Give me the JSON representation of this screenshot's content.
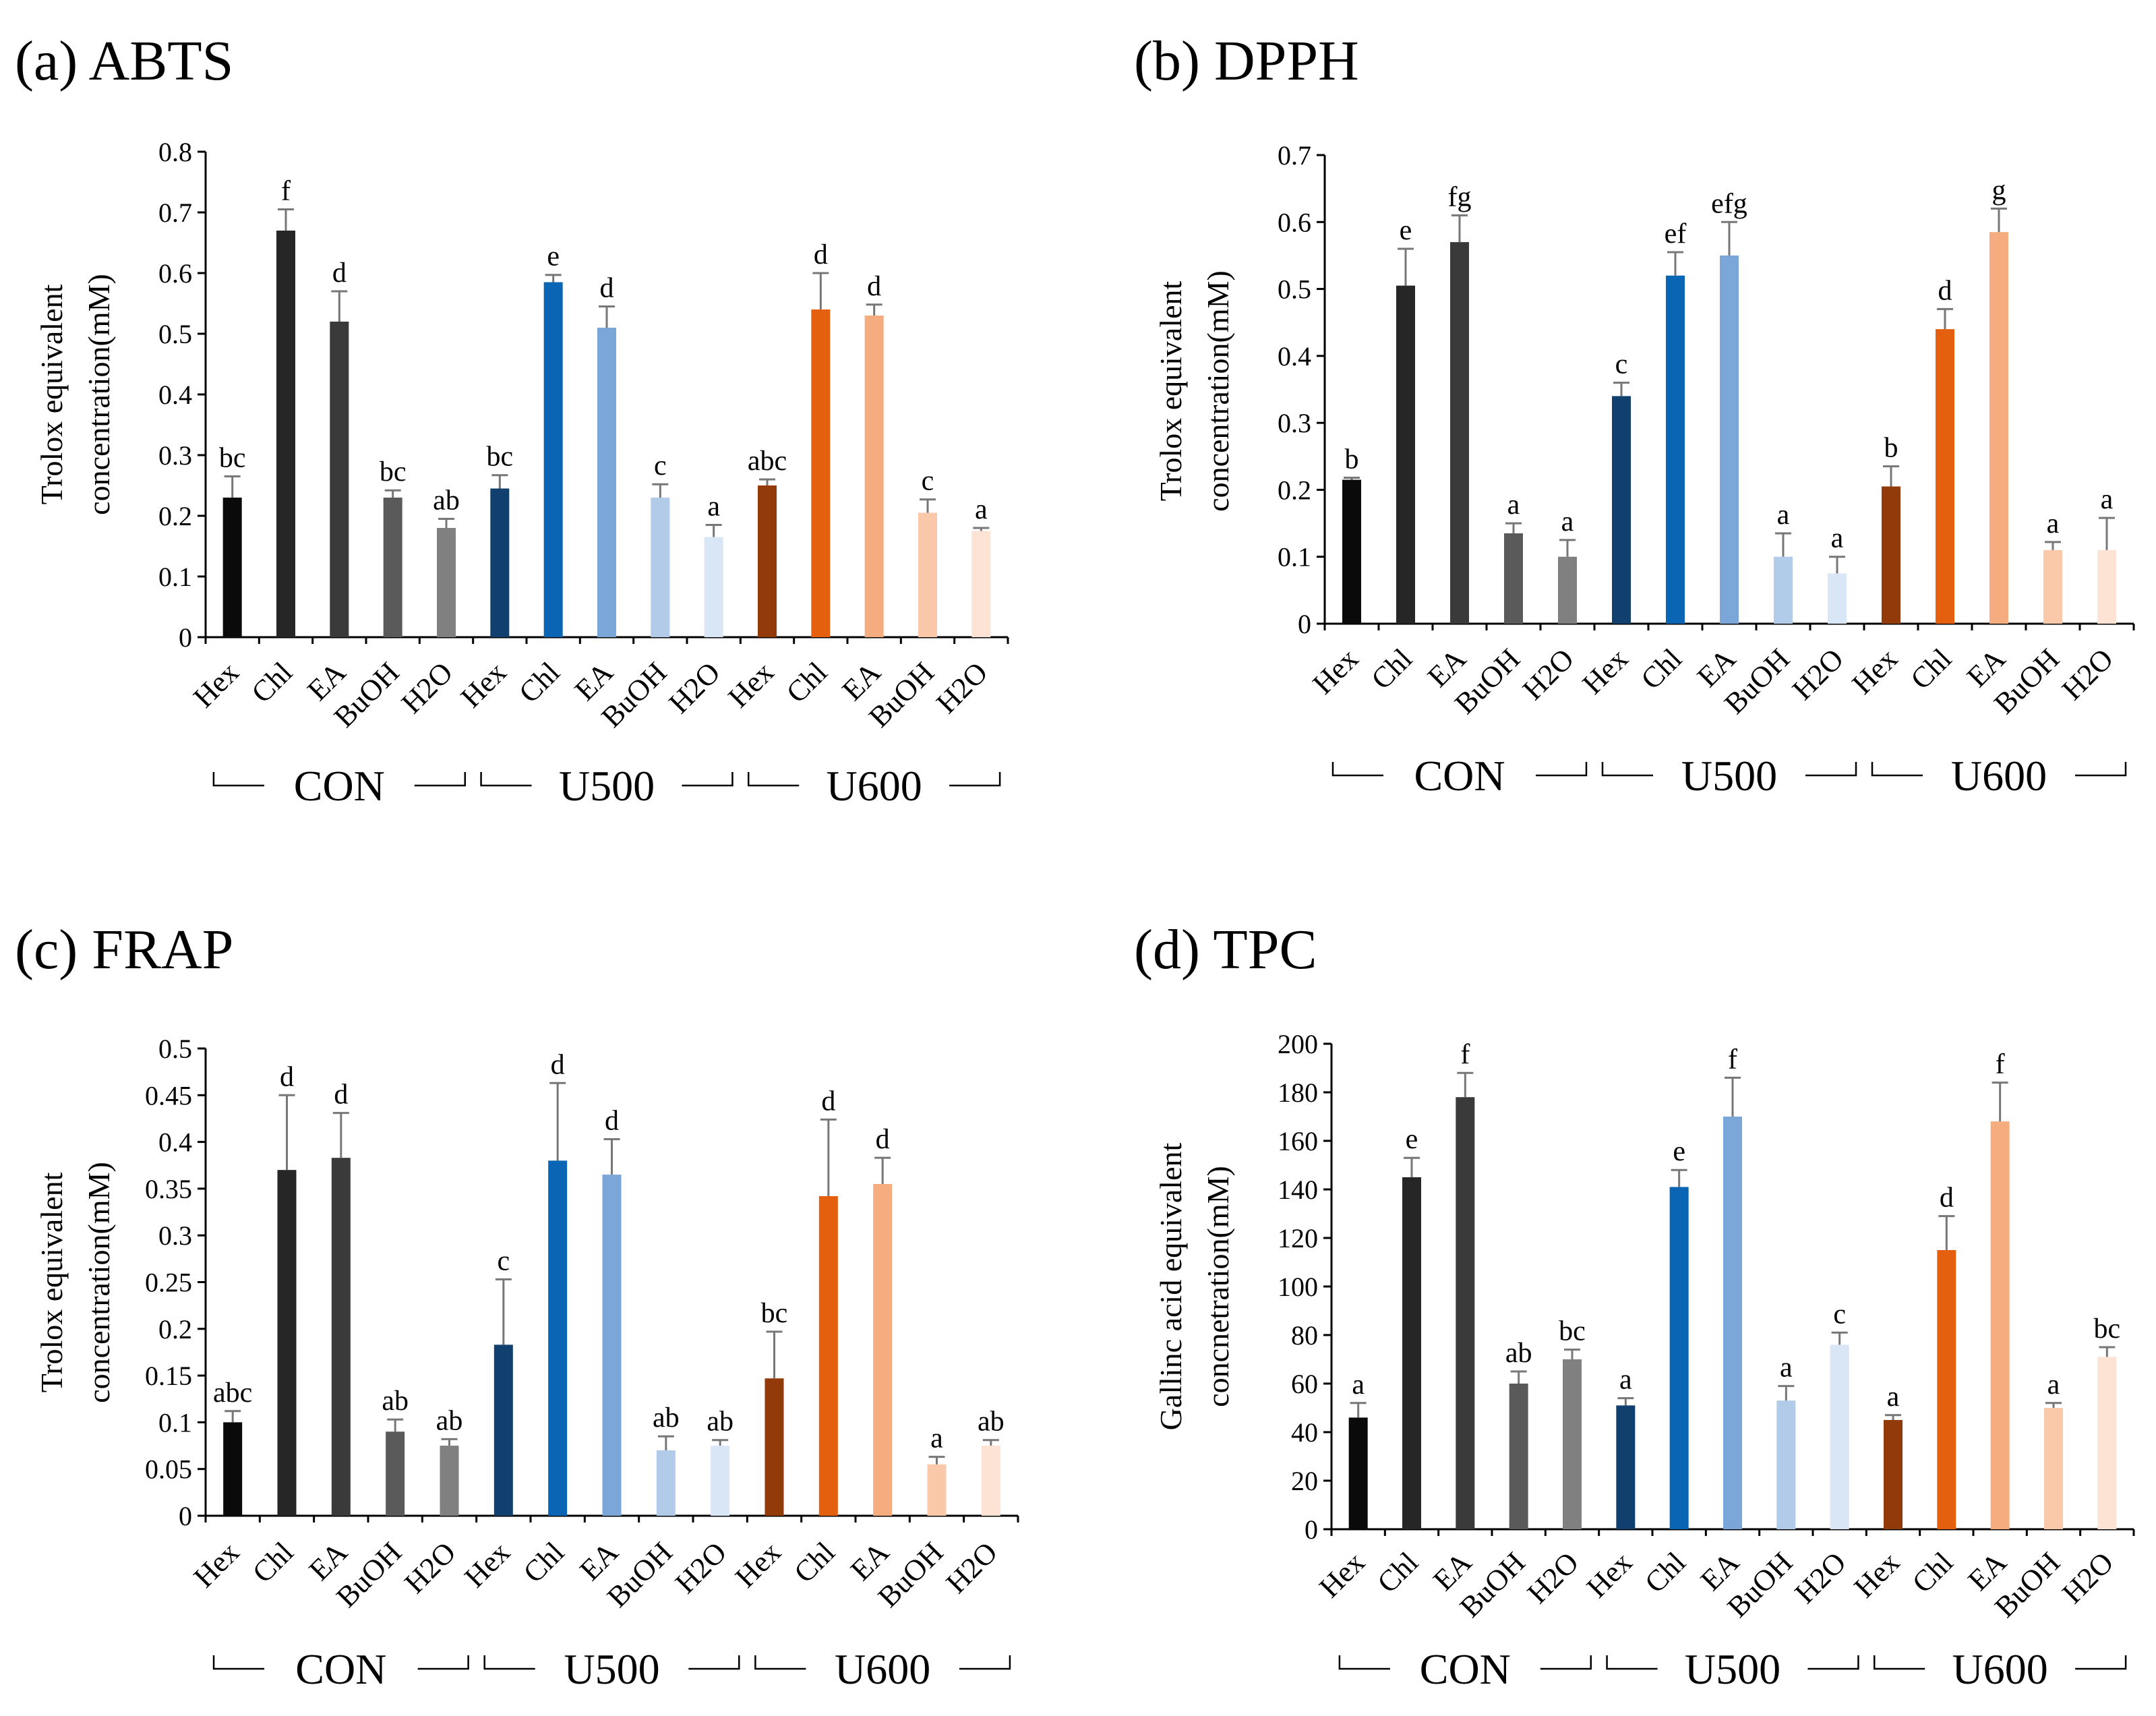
{
  "colors": {
    "CON": [
      "#0a0a0a",
      "#262626",
      "#3a3a3a",
      "#5a5a5a",
      "#808080"
    ],
    "U500": [
      "#12406e",
      "#0a66b4",
      "#7ba6d8",
      "#b2cbe9",
      "#d8e6f5"
    ],
    "U600": [
      "#923a0a",
      "#e5600e",
      "#f5ac7e",
      "#f9c9aa",
      "#fde3d3"
    ]
  },
  "chart_data": [
    {
      "type": "bar",
      "panel": "a",
      "title": "(a) ABTS",
      "ylabel": [
        "Trolox  equivalent",
        "concentration(mM)"
      ],
      "ylim": [
        0,
        0.8
      ],
      "yticks": [
        "0",
        "0.1",
        "0.2",
        "0.3",
        "0.4",
        "0.5",
        "0.6",
        "0.7",
        "0.8"
      ],
      "categories": [
        "Hex",
        "Chl",
        "EA",
        "BuOH",
        "H2O",
        "Hex",
        "Chl",
        "EA",
        "BuOH",
        "H2O",
        "Hex",
        "Chl",
        "EA",
        "BuOH",
        "H2O"
      ],
      "groups": [
        "CON",
        "U500",
        "U600"
      ],
      "values": [
        0.23,
        0.67,
        0.52,
        0.23,
        0.18,
        0.245,
        0.585,
        0.51,
        0.23,
        0.165,
        0.25,
        0.54,
        0.53,
        0.205,
        0.175
      ],
      "errors": [
        0.035,
        0.035,
        0.05,
        0.012,
        0.015,
        0.022,
        0.012,
        0.035,
        0.022,
        0.02,
        0.01,
        0.06,
        0.018,
        0.022,
        0.005
      ],
      "letters": [
        "bc",
        "f",
        "d",
        "bc",
        "ab",
        "bc",
        "e",
        "d",
        "c",
        "a",
        "abc",
        "d",
        "d",
        "c",
        "a"
      ]
    },
    {
      "type": "bar",
      "panel": "b",
      "title": "(b) DPPH",
      "ylabel": [
        "Trolox  equivalent",
        "concentration(mM)"
      ],
      "ylim": [
        0,
        0.7
      ],
      "yticks": [
        "0",
        "0.1",
        "0.2",
        "0.3",
        "0.4",
        "0.5",
        "0.6",
        "0.7"
      ],
      "categories": [
        "Hex",
        "Chl",
        "EA",
        "BuOH",
        "H2O",
        "Hex",
        "Chl",
        "EA",
        "BuOH",
        "H2O",
        "Hex",
        "Chl",
        "EA",
        "BuOH",
        "H2O"
      ],
      "groups": [
        "CON",
        "U500",
        "U600"
      ],
      "values": [
        0.215,
        0.505,
        0.57,
        0.135,
        0.1,
        0.34,
        0.52,
        0.55,
        0.1,
        0.075,
        0.205,
        0.44,
        0.585,
        0.11,
        0.11
      ],
      "errors": [
        0.003,
        0.055,
        0.04,
        0.015,
        0.025,
        0.02,
        0.035,
        0.05,
        0.035,
        0.025,
        0.03,
        0.03,
        0.035,
        0.012,
        0.048
      ],
      "letters": [
        "b",
        "e",
        "fg",
        "a",
        "a",
        "c",
        "ef",
        "efg",
        "a",
        "a",
        "b",
        "d",
        "g",
        "a",
        "a"
      ]
    },
    {
      "type": "bar",
      "panel": "c",
      "title": "(c) FRAP",
      "ylabel": [
        "Trolox  equivalent",
        "concentration(mM)"
      ],
      "ylim": [
        0,
        0.5
      ],
      "yticks": [
        "0",
        "0.05",
        "0.1",
        "0.15",
        "0.2",
        "0.25",
        "0.3",
        "0.35",
        "0.4",
        "0.45",
        "0.5"
      ],
      "categories": [
        "Hex",
        "Chl",
        "EA",
        "BuOH",
        "H2O",
        "Hex",
        "Chl",
        "EA",
        "BuOH",
        "H2O",
        "Hex",
        "Chl",
        "EA",
        "BuOH",
        "H2O"
      ],
      "groups": [
        "CON",
        "U500",
        "U600"
      ],
      "values": [
        0.1,
        0.37,
        0.383,
        0.09,
        0.075,
        0.183,
        0.38,
        0.365,
        0.07,
        0.075,
        0.147,
        0.342,
        0.355,
        0.055,
        0.075
      ],
      "errors": [
        0.012,
        0.08,
        0.048,
        0.013,
        0.007,
        0.07,
        0.083,
        0.038,
        0.015,
        0.006,
        0.05,
        0.082,
        0.028,
        0.008,
        0.006
      ],
      "letters": [
        "abc",
        "d",
        "d",
        "ab",
        "ab",
        "c",
        "d",
        "d",
        "ab",
        "ab",
        "bc",
        "d",
        "d",
        "a",
        "ab"
      ]
    },
    {
      "type": "bar",
      "panel": "d",
      "title": "(d) TPC",
      "ylabel": [
        "Gallinc  acid equivalent",
        "concnetration(mM)"
      ],
      "ylim": [
        0,
        200
      ],
      "yticks": [
        "0",
        "20",
        "40",
        "60",
        "80",
        "100",
        "120",
        "140",
        "160",
        "180",
        "200"
      ],
      "categories": [
        "Hex",
        "Chl",
        "EA",
        "BuOH",
        "H2O",
        "Hex",
        "Chl",
        "EA",
        "BuOH",
        "H2O",
        "Hex",
        "Chl",
        "EA",
        "BuOH",
        "H2O"
      ],
      "groups": [
        "CON",
        "U500",
        "U600"
      ],
      "values": [
        46,
        145,
        178,
        60,
        70,
        51,
        141,
        170,
        53,
        76,
        45,
        115,
        168,
        50,
        71
      ],
      "errors": [
        6,
        8,
        10,
        5,
        4,
        3,
        7,
        16,
        6,
        5,
        2,
        14,
        16,
        2,
        4
      ],
      "letters": [
        "a",
        "e",
        "f",
        "ab",
        "bc",
        "a",
        "e",
        "f",
        "a",
        "c",
        "a",
        "d",
        "f",
        "a",
        "bc"
      ]
    }
  ]
}
